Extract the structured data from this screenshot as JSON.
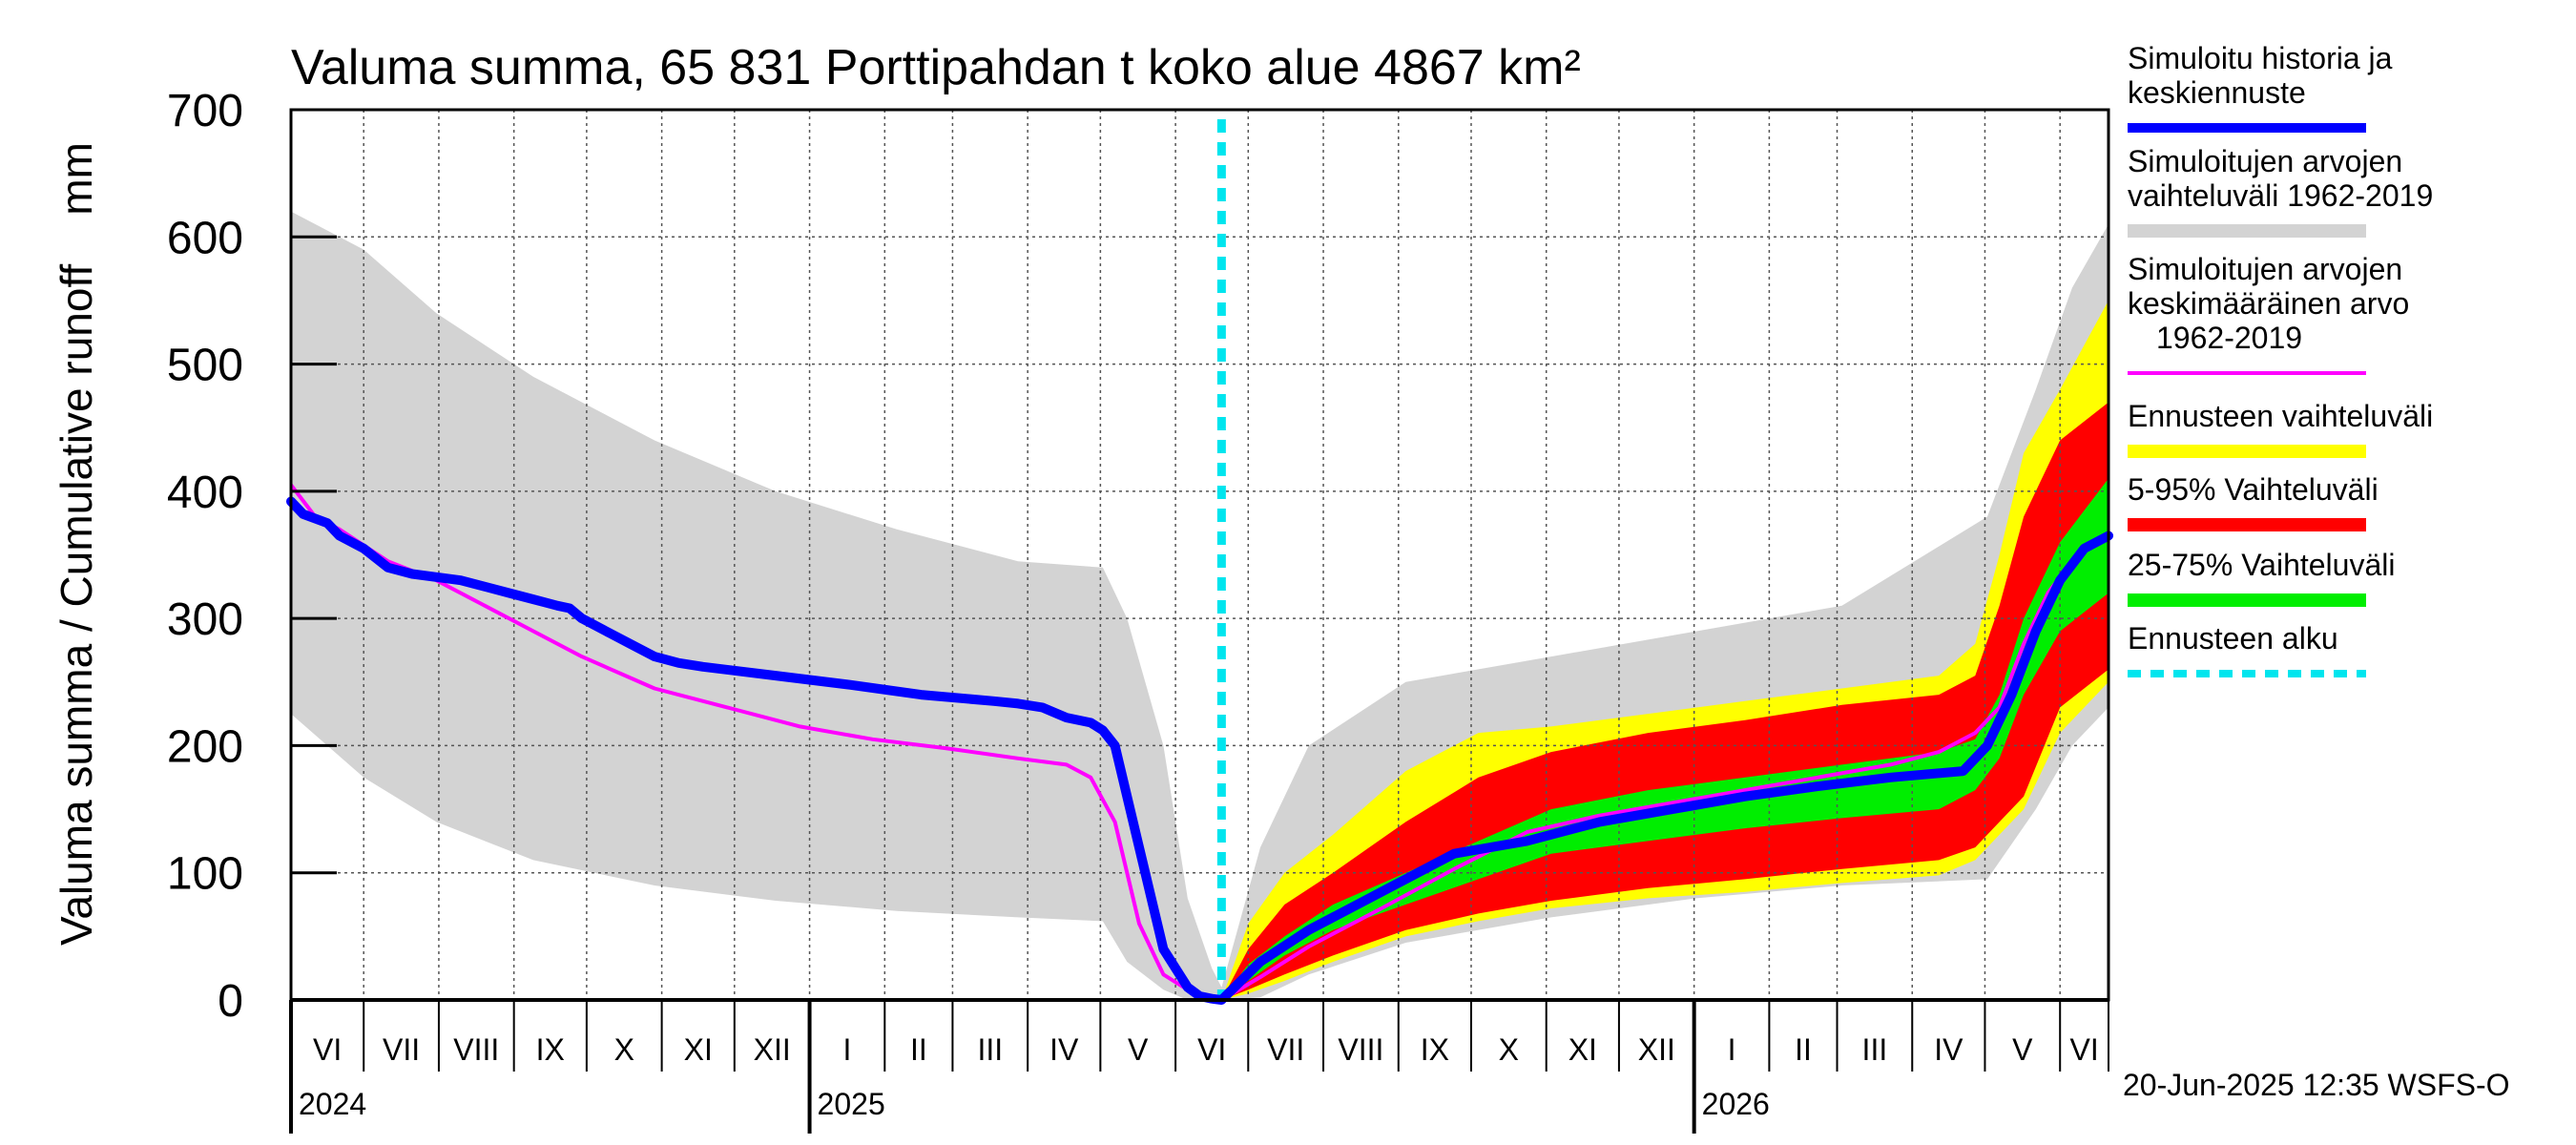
{
  "chart_data": {
    "type": "area",
    "title": "Valuma summa, 65 831 Porttipahdan t koko alue 4867 km²",
    "ylabel": "Valuma summa / Cumulative runoff    mm",
    "xlabel": "",
    "ylim": [
      0,
      700
    ],
    "yticks": [
      0,
      100,
      200,
      300,
      400,
      500,
      600,
      700
    ],
    "grid": true,
    "x_range_days": [
      0,
      750
    ],
    "forecast_start_day": 384,
    "months": [
      {
        "label": "VI",
        "start": 0
      },
      {
        "label": "VII",
        "start": 30
      },
      {
        "label": "VIII",
        "start": 61
      },
      {
        "label": "IX",
        "start": 92
      },
      {
        "label": "X",
        "start": 122
      },
      {
        "label": "XI",
        "start": 153
      },
      {
        "label": "XII",
        "start": 183
      },
      {
        "label": "I",
        "start": 214
      },
      {
        "label": "II",
        "start": 245
      },
      {
        "label": "III",
        "start": 273
      },
      {
        "label": "IV",
        "start": 304
      },
      {
        "label": "V",
        "start": 334
      },
      {
        "label": "VI",
        "start": 365
      },
      {
        "label": "VII",
        "start": 395
      },
      {
        "label": "VIII",
        "start": 426
      },
      {
        "label": "IX",
        "start": 457
      },
      {
        "label": "X",
        "start": 487
      },
      {
        "label": "XI",
        "start": 518
      },
      {
        "label": "XII",
        "start": 548
      },
      {
        "label": "I",
        "start": 579
      },
      {
        "label": "II",
        "start": 610
      },
      {
        "label": "III",
        "start": 638
      },
      {
        "label": "IV",
        "start": 669
      },
      {
        "label": "V",
        "start": 699
      },
      {
        "label": "VI",
        "start": 730
      }
    ],
    "years": [
      {
        "label": "2024",
        "start": 0
      },
      {
        "label": "2025",
        "start": 214
      },
      {
        "label": "2026",
        "start": 579
      }
    ],
    "sim_range": {
      "name": "Simuloitujen arvojen vaihteluväli 1962-2019",
      "color": "#d3d3d3",
      "x": [
        0,
        30,
        60,
        100,
        150,
        200,
        250,
        300,
        335,
        345,
        360,
        370,
        380,
        384,
        400,
        420,
        460,
        520,
        580,
        640,
        700,
        720,
        735,
        750
      ],
      "upper": [
        620,
        590,
        540,
        490,
        440,
        400,
        370,
        345,
        340,
        300,
        200,
        80,
        25,
        10,
        120,
        200,
        250,
        270,
        290,
        310,
        380,
        480,
        560,
        610
      ],
      "lower": [
        225,
        175,
        140,
        110,
        90,
        78,
        70,
        65,
        62,
        30,
        8,
        0,
        0,
        0,
        2,
        20,
        45,
        65,
        80,
        90,
        95,
        150,
        200,
        230
      ]
    },
    "sim_mean": {
      "name": "Simuloitujen arvojen keskimääräinen arvo 1962-2019",
      "color": "#ff00ff",
      "x": [
        0,
        10,
        20,
        40,
        60,
        80,
        100,
        120,
        150,
        180,
        210,
        240,
        270,
        300,
        320,
        330,
        340,
        350,
        360,
        370,
        380,
        384,
        400,
        420,
        450,
        480,
        510,
        540,
        570,
        600,
        630,
        660,
        680,
        695,
        705,
        715,
        725,
        735,
        745,
        750
      ],
      "values": [
        405,
        380,
        370,
        345,
        330,
        310,
        290,
        270,
        245,
        230,
        215,
        205,
        198,
        190,
        185,
        175,
        140,
        60,
        20,
        8,
        2,
        0,
        18,
        42,
        72,
        103,
        132,
        145,
        155,
        165,
        175,
        185,
        195,
        210,
        230,
        280,
        320,
        345,
        360,
        365
      ]
    },
    "forecast_full": {
      "name": "Ennusteen vaihteluväli",
      "color": "#ffff00",
      "x": [
        384,
        395,
        410,
        430,
        460,
        490,
        520,
        560,
        600,
        640,
        680,
        695,
        705,
        715,
        730,
        750
      ],
      "upper": [
        0,
        60,
        100,
        130,
        180,
        210,
        215,
        225,
        235,
        245,
        255,
        280,
        350,
        430,
        480,
        550
      ],
      "lower": [
        0,
        5,
        15,
        30,
        50,
        62,
        72,
        80,
        85,
        92,
        98,
        110,
        130,
        150,
        210,
        250
      ]
    },
    "forecast_5_95": {
      "name": "5-95% Vaihteluväli",
      "color": "#ff0000",
      "x": [
        384,
        395,
        410,
        430,
        460,
        490,
        520,
        560,
        600,
        640,
        680,
        695,
        705,
        715,
        730,
        750
      ],
      "upper": [
        0,
        40,
        75,
        100,
        140,
        175,
        195,
        210,
        220,
        232,
        240,
        255,
        310,
        380,
        440,
        470
      ],
      "lower": [
        0,
        8,
        20,
        35,
        55,
        68,
        78,
        88,
        95,
        103,
        110,
        120,
        140,
        160,
        230,
        260
      ]
    },
    "forecast_25_75": {
      "name": "25-75% Vaihteluväli",
      "color": "#00ee00",
      "x": [
        384,
        395,
        410,
        430,
        460,
        490,
        520,
        560,
        600,
        640,
        680,
        695,
        705,
        715,
        730,
        750
      ],
      "upper": [
        0,
        28,
        50,
        75,
        100,
        125,
        150,
        165,
        175,
        185,
        195,
        205,
        240,
        300,
        360,
        410
      ],
      "lower": [
        0,
        15,
        35,
        55,
        75,
        95,
        115,
        125,
        135,
        143,
        150,
        165,
        190,
        240,
        290,
        320
      ]
    },
    "history_forecast": {
      "name": "Simuloitu historia ja keskiennuste",
      "color": "#0000ff",
      "x": [
        0,
        5,
        15,
        20,
        30,
        40,
        50,
        70,
        80,
        90,
        100,
        110,
        115,
        120,
        130,
        140,
        150,
        160,
        170,
        200,
        230,
        260,
        290,
        300,
        310,
        320,
        330,
        335,
        340,
        350,
        360,
        370,
        375,
        380,
        384,
        400,
        420,
        450,
        480,
        510,
        540,
        570,
        600,
        630,
        660,
        690,
        700,
        710,
        720,
        730,
        740,
        750
      ],
      "values": [
        392,
        382,
        375,
        365,
        355,
        340,
        335,
        330,
        325,
        320,
        315,
        310,
        308,
        300,
        290,
        280,
        270,
        265,
        262,
        255,
        248,
        240,
        235,
        233,
        230,
        222,
        218,
        212,
        200,
        120,
        40,
        10,
        3,
        1,
        0,
        30,
        55,
        85,
        115,
        125,
        140,
        150,
        160,
        168,
        175,
        180,
        200,
        240,
        290,
        330,
        355,
        365
      ]
    },
    "legend": [
      {
        "label": "Simuloitu historia ja keskiennuste",
        "color": "#0000ff",
        "style": "thick"
      },
      {
        "label": "Simuloitujen arvojen vaihteluväli 1962-2019",
        "color": "#d3d3d3",
        "style": "band"
      },
      {
        "label": "Simuloitujen arvojen keskimääräinen arvo 1962-2019",
        "color": "#ff00ff",
        "style": "thin"
      },
      {
        "label": "Ennusteen vaihteluväli",
        "color": "#ffff00",
        "style": "band"
      },
      {
        "label": "5-95% Vaihteluväli",
        "color": "#ff0000",
        "style": "band"
      },
      {
        "label": "25-75% Vaihteluväli",
        "color": "#00ee00",
        "style": "band"
      },
      {
        "label": "Ennusteen alku",
        "color": "#00e5ee",
        "style": "dashed"
      }
    ],
    "legend_placement": "right",
    "footer": "20-Jun-2025 12:35 WSFS-O"
  }
}
